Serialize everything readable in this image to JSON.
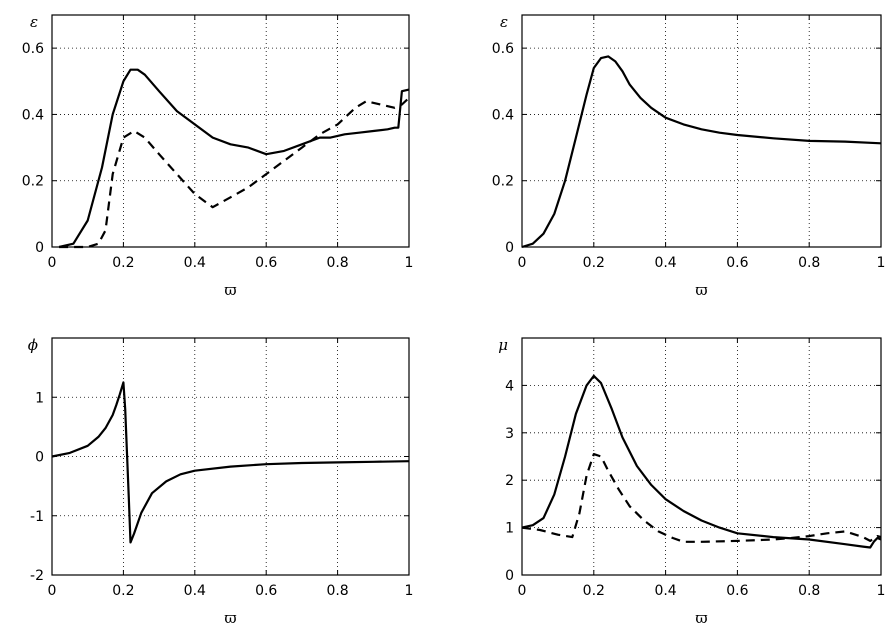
{
  "chart_data": [
    {
      "type": "line",
      "ylabel": "ε",
      "xlabel": "ϖ",
      "xlim": [
        0,
        1
      ],
      "ylim": [
        0,
        0.7
      ],
      "xticks": [
        0,
        0.2,
        0.4,
        0.6,
        0.8,
        1
      ],
      "xtick_labels": [
        "0",
        "0.2",
        "0.4",
        "0.6",
        "0.8",
        "1"
      ],
      "yticks": [
        0,
        0.2,
        0.4,
        0.6
      ],
      "ytick_labels": [
        "0",
        "0.2",
        "0.4",
        "0.6"
      ],
      "grid": true,
      "series": [
        {
          "style": "solid",
          "x": [
            0.02,
            0.06,
            0.1,
            0.14,
            0.17,
            0.2,
            0.22,
            0.24,
            0.26,
            0.3,
            0.35,
            0.4,
            0.45,
            0.5,
            0.55,
            0.6,
            0.65,
            0.7,
            0.75,
            0.78,
            0.82,
            0.86,
            0.9,
            0.94,
            0.96,
            0.97,
            0.98,
            1.0
          ],
          "y": [
            0,
            0.01,
            0.08,
            0.24,
            0.4,
            0.5,
            0.535,
            0.535,
            0.52,
            0.47,
            0.41,
            0.37,
            0.33,
            0.31,
            0.3,
            0.28,
            0.29,
            0.31,
            0.33,
            0.33,
            0.34,
            0.345,
            0.35,
            0.355,
            0.36,
            0.36,
            0.47,
            0.475
          ]
        },
        {
          "style": "dashed",
          "x": [
            0.02,
            0.06,
            0.1,
            0.13,
            0.15,
            0.17,
            0.2,
            0.23,
            0.26,
            0.3,
            0.35,
            0.4,
            0.45,
            0.5,
            0.55,
            0.6,
            0.65,
            0.7,
            0.75,
            0.8,
            0.85,
            0.88,
            0.92,
            0.96,
            0.98,
            1.0
          ],
          "y": [
            0,
            0,
            0,
            0.01,
            0.05,
            0.22,
            0.33,
            0.35,
            0.33,
            0.28,
            0.22,
            0.16,
            0.12,
            0.15,
            0.18,
            0.22,
            0.26,
            0.3,
            0.34,
            0.37,
            0.42,
            0.44,
            0.43,
            0.42,
            0.43,
            0.45
          ]
        }
      ]
    },
    {
      "type": "line",
      "ylabel": "ε",
      "xlabel": "ϖ",
      "xlim": [
        0,
        1
      ],
      "ylim": [
        0,
        0.7
      ],
      "xticks": [
        0,
        0.2,
        0.4,
        0.6,
        0.8,
        1
      ],
      "xtick_labels": [
        "0",
        "0.2",
        "0.4",
        "0.6",
        "0.8",
        "1"
      ],
      "yticks": [
        0,
        0.2,
        0.4,
        0.6
      ],
      "ytick_labels": [
        "0",
        "0.2",
        "0.4",
        "0.6"
      ],
      "grid": true,
      "series": [
        {
          "style": "solid",
          "x": [
            0,
            0.03,
            0.06,
            0.09,
            0.12,
            0.15,
            0.18,
            0.2,
            0.22,
            0.24,
            0.26,
            0.28,
            0.3,
            0.33,
            0.36,
            0.4,
            0.45,
            0.5,
            0.55,
            0.6,
            0.7,
            0.8,
            0.9,
            1.0
          ],
          "y": [
            0,
            0.01,
            0.04,
            0.1,
            0.2,
            0.33,
            0.46,
            0.54,
            0.57,
            0.575,
            0.56,
            0.53,
            0.49,
            0.45,
            0.42,
            0.39,
            0.37,
            0.355,
            0.345,
            0.338,
            0.328,
            0.32,
            0.318,
            0.313
          ]
        }
      ]
    },
    {
      "type": "line",
      "ylabel": "ϕ",
      "xlabel": "ϖ",
      "xlim": [
        0,
        1
      ],
      "ylim": [
        -2,
        2
      ],
      "xticks": [
        0,
        0.2,
        0.4,
        0.6,
        0.8,
        1
      ],
      "xtick_labels": [
        "0",
        "0.2",
        "0.4",
        "0.6",
        "0.8",
        "1"
      ],
      "yticks": [
        -2,
        -1,
        0,
        1
      ],
      "ytick_labels": [
        "-2",
        "-1",
        "0",
        "1"
      ],
      "grid": true,
      "series": [
        {
          "style": "solid",
          "x": [
            0,
            0.05,
            0.1,
            0.13,
            0.15,
            0.17,
            0.18,
            0.19,
            0.2,
            0.205,
            0.215,
            0.22,
            0.23,
            0.25,
            0.28,
            0.32,
            0.36,
            0.4,
            0.5,
            0.6,
            0.7,
            0.8,
            0.9,
            1.0
          ],
          "y": [
            0,
            0.06,
            0.18,
            0.33,
            0.48,
            0.7,
            0.87,
            1.05,
            1.25,
            0.8,
            -0.7,
            -1.45,
            -1.3,
            -0.95,
            -0.62,
            -0.42,
            -0.3,
            -0.24,
            -0.17,
            -0.13,
            -0.11,
            -0.1,
            -0.09,
            -0.08
          ]
        }
      ]
    },
    {
      "type": "line",
      "ylabel": "μ",
      "xlabel": "ϖ",
      "xlim": [
        0,
        1
      ],
      "ylim": [
        0,
        5
      ],
      "xticks": [
        0,
        0.2,
        0.4,
        0.6,
        0.8,
        1
      ],
      "xtick_labels": [
        "0",
        "0.2",
        "0.4",
        "0.6",
        "0.8",
        "1"
      ],
      "yticks": [
        0,
        1,
        2,
        3,
        4
      ],
      "ytick_labels": [
        "0",
        "1",
        "2",
        "3",
        "4"
      ],
      "grid": true,
      "series": [
        {
          "style": "solid",
          "x": [
            0,
            0.03,
            0.06,
            0.09,
            0.12,
            0.15,
            0.18,
            0.2,
            0.22,
            0.25,
            0.28,
            0.32,
            0.36,
            0.4,
            0.45,
            0.5,
            0.55,
            0.6,
            0.7,
            0.8,
            0.9,
            0.95,
            0.97,
            0.98,
            0.99,
            1.0
          ],
          "y": [
            1.0,
            1.05,
            1.2,
            1.7,
            2.5,
            3.4,
            4.0,
            4.2,
            4.05,
            3.5,
            2.9,
            2.3,
            1.9,
            1.6,
            1.35,
            1.15,
            1.0,
            0.88,
            0.8,
            0.75,
            0.65,
            0.6,
            0.58,
            0.7,
            0.78,
            0.75
          ]
        },
        {
          "style": "dashed",
          "x": [
            0,
            0.05,
            0.1,
            0.14,
            0.16,
            0.18,
            0.2,
            0.22,
            0.24,
            0.27,
            0.3,
            0.34,
            0.38,
            0.42,
            0.45,
            0.5,
            0.6,
            0.7,
            0.75,
            0.8,
            0.85,
            0.9,
            0.95,
            0.97,
            0.99,
            1.0
          ],
          "y": [
            1.0,
            0.95,
            0.85,
            0.8,
            1.3,
            2.1,
            2.55,
            2.5,
            2.2,
            1.8,
            1.45,
            1.15,
            0.92,
            0.78,
            0.7,
            0.7,
            0.72,
            0.75,
            0.78,
            0.82,
            0.88,
            0.92,
            0.8,
            0.72,
            0.82,
            0.8
          ]
        }
      ]
    }
  ]
}
